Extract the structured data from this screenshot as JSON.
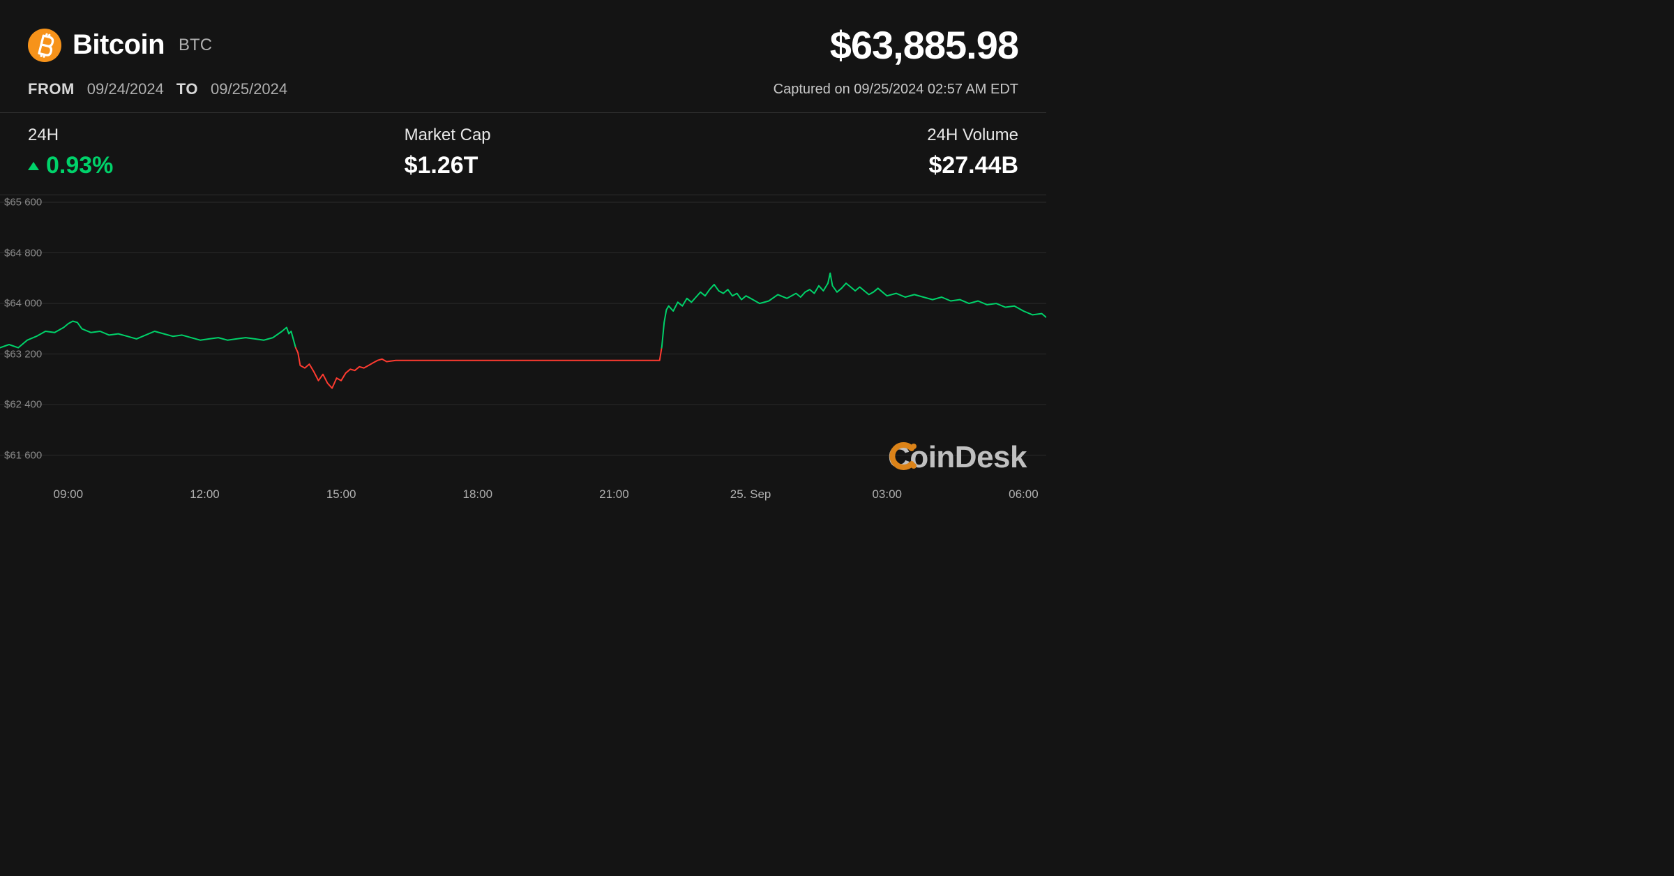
{
  "coin": {
    "name": "Bitcoin",
    "symbol": "BTC",
    "logo_bg": "#f7931a",
    "logo_fg": "#ffffff"
  },
  "price": "$63,885.98",
  "range": {
    "from_label": "FROM",
    "from_value": "09/24/2024",
    "to_label": "TO",
    "to_value": "09/25/2024"
  },
  "captured": "Captured on 09/25/2024 02:57 AM EDT",
  "stats": {
    "change": {
      "label": "24H",
      "value": "0.93%",
      "direction": "up",
      "color": "#00d26a"
    },
    "mcap": {
      "label": "Market Cap",
      "value": "$1.26T"
    },
    "vol": {
      "label": "24H Volume",
      "value": "$27.44B"
    }
  },
  "watermark": {
    "text": "CoinDesk",
    "icon_color": "#f7931a",
    "text_color": "#d8d8d8"
  },
  "chart": {
    "type": "line",
    "background_color": "#141414",
    "grid_color": "#2b2b2b",
    "up_color": "#00d26a",
    "down_color": "#ff3b30",
    "line_width": 2,
    "baseline": 63300,
    "ylim": [
      61200,
      65600
    ],
    "yticks": [
      {
        "v": 65600,
        "label": "$65 600"
      },
      {
        "v": 64800,
        "label": "$64 800"
      },
      {
        "v": 64000,
        "label": "$64 000"
      },
      {
        "v": 63200,
        "label": "$63 200"
      },
      {
        "v": 62400,
        "label": "$62 400"
      },
      {
        "v": 61600,
        "label": "$61 600"
      }
    ],
    "xlim": [
      7.5,
      30.5
    ],
    "xticks": [
      {
        "v": 9,
        "label": "09:00"
      },
      {
        "v": 12,
        "label": "12:00"
      },
      {
        "v": 15,
        "label": "15:00"
      },
      {
        "v": 18,
        "label": "18:00"
      },
      {
        "v": 21,
        "label": "21:00"
      },
      {
        "v": 24,
        "label": "25. Sep"
      },
      {
        "v": 27,
        "label": "03:00"
      },
      {
        "v": 30,
        "label": "06:00"
      }
    ],
    "series": [
      [
        7.5,
        63300
      ],
      [
        7.7,
        63350
      ],
      [
        7.9,
        63300
      ],
      [
        8.1,
        63420
      ],
      [
        8.3,
        63480
      ],
      [
        8.5,
        63560
      ],
      [
        8.7,
        63540
      ],
      [
        8.9,
        63620
      ],
      [
        9.0,
        63680
      ],
      [
        9.1,
        63720
      ],
      [
        9.2,
        63700
      ],
      [
        9.3,
        63600
      ],
      [
        9.5,
        63540
      ],
      [
        9.7,
        63560
      ],
      [
        9.9,
        63500
      ],
      [
        10.1,
        63520
      ],
      [
        10.3,
        63480
      ],
      [
        10.5,
        63440
      ],
      [
        10.7,
        63500
      ],
      [
        10.9,
        63560
      ],
      [
        11.1,
        63520
      ],
      [
        11.3,
        63480
      ],
      [
        11.5,
        63500
      ],
      [
        11.7,
        63460
      ],
      [
        11.9,
        63420
      ],
      [
        12.1,
        63440
      ],
      [
        12.3,
        63460
      ],
      [
        12.5,
        63420
      ],
      [
        12.7,
        63440
      ],
      [
        12.9,
        63460
      ],
      [
        13.1,
        63440
      ],
      [
        13.3,
        63420
      ],
      [
        13.5,
        63460
      ],
      [
        13.7,
        63560
      ],
      [
        13.8,
        63620
      ],
      [
        13.85,
        63520
      ],
      [
        13.9,
        63560
      ],
      [
        14.0,
        63300
      ],
      [
        14.05,
        63220
      ],
      [
        14.1,
        63020
      ],
      [
        14.2,
        62980
      ],
      [
        14.3,
        63040
      ],
      [
        14.4,
        62920
      ],
      [
        14.5,
        62780
      ],
      [
        14.6,
        62880
      ],
      [
        14.7,
        62740
      ],
      [
        14.8,
        62660
      ],
      [
        14.9,
        62820
      ],
      [
        15.0,
        62780
      ],
      [
        15.1,
        62900
      ],
      [
        15.2,
        62960
      ],
      [
        15.3,
        62940
      ],
      [
        15.4,
        63000
      ],
      [
        15.5,
        62980
      ],
      [
        15.6,
        63020
      ],
      [
        15.7,
        63060
      ],
      [
        15.8,
        63100
      ],
      [
        15.9,
        63120
      ],
      [
        16.0,
        63080
      ],
      [
        16.2,
        63100
      ],
      [
        16.4,
        63100
      ],
      [
        16.6,
        63100
      ],
      [
        16.8,
        63100
      ],
      [
        17.0,
        63100
      ],
      [
        17.5,
        63100
      ],
      [
        18.0,
        63100
      ],
      [
        18.5,
        63100
      ],
      [
        19.0,
        63100
      ],
      [
        19.5,
        63100
      ],
      [
        20.0,
        63100
      ],
      [
        20.5,
        63100
      ],
      [
        21.0,
        63100
      ],
      [
        21.5,
        63100
      ],
      [
        21.8,
        63100
      ],
      [
        22.0,
        63100
      ],
      [
        22.05,
        63320
      ],
      [
        22.1,
        63700
      ],
      [
        22.15,
        63900
      ],
      [
        22.2,
        63960
      ],
      [
        22.3,
        63880
      ],
      [
        22.4,
        64020
      ],
      [
        22.5,
        63960
      ],
      [
        22.6,
        64080
      ],
      [
        22.7,
        64020
      ],
      [
        22.8,
        64100
      ],
      [
        22.9,
        64180
      ],
      [
        23.0,
        64120
      ],
      [
        23.1,
        64220
      ],
      [
        23.2,
        64300
      ],
      [
        23.3,
        64200
      ],
      [
        23.4,
        64160
      ],
      [
        23.5,
        64220
      ],
      [
        23.6,
        64120
      ],
      [
        23.7,
        64160
      ],
      [
        23.8,
        64060
      ],
      [
        23.9,
        64120
      ],
      [
        24.0,
        64080
      ],
      [
        24.2,
        64000
      ],
      [
        24.4,
        64040
      ],
      [
        24.6,
        64140
      ],
      [
        24.8,
        64080
      ],
      [
        25.0,
        64160
      ],
      [
        25.1,
        64100
      ],
      [
        25.2,
        64180
      ],
      [
        25.3,
        64220
      ],
      [
        25.4,
        64160
      ],
      [
        25.5,
        64280
      ],
      [
        25.6,
        64200
      ],
      [
        25.7,
        64320
      ],
      [
        25.75,
        64480
      ],
      [
        25.8,
        64280
      ],
      [
        25.9,
        64180
      ],
      [
        26.0,
        64240
      ],
      [
        26.1,
        64320
      ],
      [
        26.2,
        64260
      ],
      [
        26.3,
        64200
      ],
      [
        26.4,
        64260
      ],
      [
        26.5,
        64200
      ],
      [
        26.6,
        64140
      ],
      [
        26.7,
        64180
      ],
      [
        26.8,
        64240
      ],
      [
        26.9,
        64180
      ],
      [
        27.0,
        64120
      ],
      [
        27.2,
        64160
      ],
      [
        27.4,
        64100
      ],
      [
        27.6,
        64140
      ],
      [
        27.8,
        64100
      ],
      [
        28.0,
        64060
      ],
      [
        28.2,
        64100
      ],
      [
        28.4,
        64040
      ],
      [
        28.6,
        64060
      ],
      [
        28.8,
        64000
      ],
      [
        29.0,
        64040
      ],
      [
        29.2,
        63980
      ],
      [
        29.4,
        64000
      ],
      [
        29.6,
        63940
      ],
      [
        29.8,
        63960
      ],
      [
        30.0,
        63880
      ],
      [
        30.2,
        63820
      ],
      [
        30.4,
        63840
      ],
      [
        30.5,
        63780
      ]
    ]
  }
}
